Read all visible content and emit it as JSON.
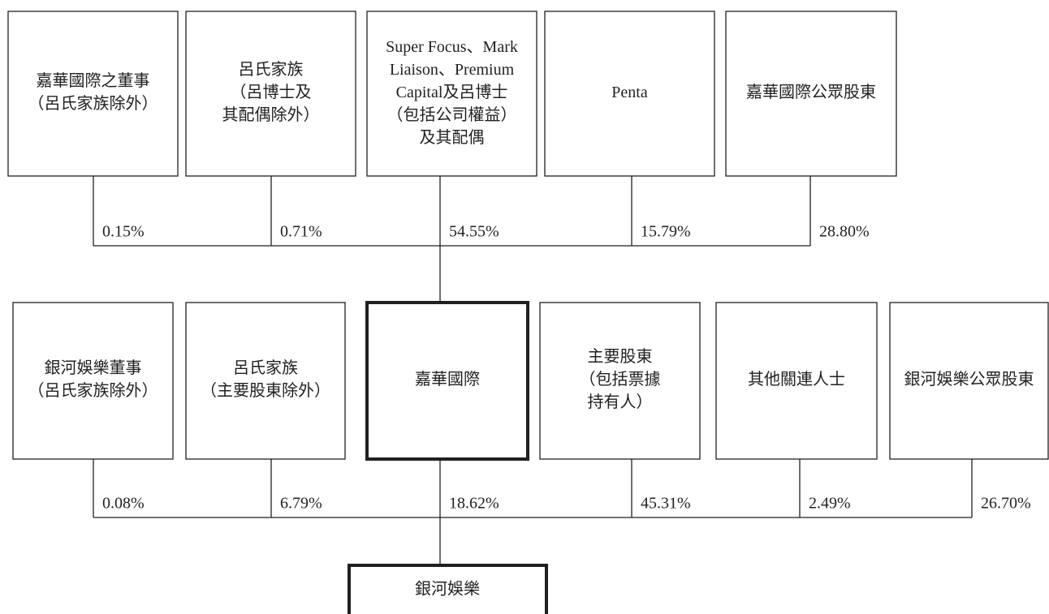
{
  "top_row": [
    {
      "label": [
        "嘉華國際之董事",
        "（呂氏家族除外）"
      ],
      "percent": "0.15%"
    },
    {
      "label": [
        "呂氏家族",
        "（呂博士及",
        "其配偶除外）"
      ],
      "percent": "0.71%"
    },
    {
      "label": [
        "Super Focus、Mark",
        "Liaison、Premium",
        "Capital及呂博士",
        "（包括公司權益）",
        "及其配偶"
      ],
      "percent": "54.55%"
    },
    {
      "label": [
        "Penta"
      ],
      "percent": "15.79%"
    },
    {
      "label": [
        "嘉華國際公眾股東"
      ],
      "percent": "28.80%"
    }
  ],
  "middle_row": [
    {
      "label": [
        "銀河娛樂董事",
        "（呂氏家族除外）"
      ],
      "percent": "0.08%"
    },
    {
      "label": [
        "呂氏家族",
        "（主要股東除外）"
      ],
      "percent": "6.79%"
    },
    {
      "label": [
        "嘉華國際"
      ],
      "percent": "18.62%"
    },
    {
      "label": [
        "主要股東",
        "（包括票據",
        "持有人）"
      ],
      "percent": "45.31%"
    },
    {
      "label": [
        "其他關連人士"
      ],
      "percent": "2.49%"
    },
    {
      "label": [
        "銀河娛樂公眾股東"
      ],
      "percent": "26.70%"
    }
  ],
  "bottom": {
    "label": [
      "銀河娛樂"
    ]
  }
}
